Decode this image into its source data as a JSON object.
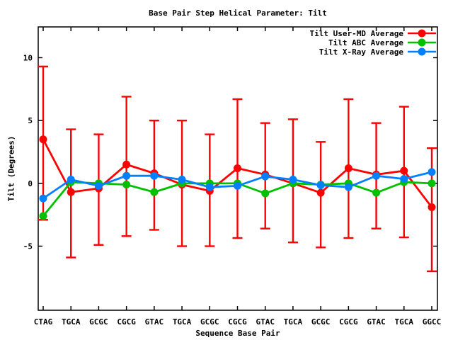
{
  "chart_data": {
    "type": "line",
    "title": "Base Pair Step Helical Parameter: Tilt",
    "xlabel": "Sequence Base Pair",
    "ylabel": "Tilt (Degrees)",
    "categories": [
      "CTAG",
      "TGCA",
      "GCGC",
      "CGCG",
      "GTAC",
      "TGCA",
      "GCGC",
      "CGCG",
      "GTAC",
      "TGCA",
      "GCGC",
      "CGCG",
      "GTAC",
      "TGCA",
      "GGCC"
    ],
    "series": [
      {
        "name": "Tilt User-MD Average",
        "color": "#ff0000",
        "marker": "circle",
        "values": [
          3.5,
          -0.7,
          -0.4,
          1.5,
          0.8,
          -0.1,
          -0.6,
          1.2,
          0.7,
          0.0,
          -0.75,
          1.2,
          0.7,
          1.0,
          -1.9
        ],
        "error_high": [
          9.3,
          4.3,
          3.9,
          6.9,
          5.0,
          5.0,
          3.9,
          6.7,
          4.8,
          5.1,
          3.3,
          6.7,
          4.8,
          6.1,
          2.8
        ],
        "error_low": [
          -2.9,
          -5.9,
          -4.9,
          -4.2,
          -3.7,
          -5.0,
          -5.0,
          -4.35,
          -3.6,
          -4.7,
          -5.1,
          -4.35,
          -3.6,
          -4.3,
          -7.0
        ]
      },
      {
        "name": "Tilt ABC Average",
        "color": "#00c000",
        "marker": "circle",
        "values": [
          -2.6,
          0.1,
          0.0,
          -0.1,
          -0.7,
          0.0,
          0.0,
          0.0,
          -0.8,
          0.0,
          -0.1,
          0.0,
          -0.75,
          0.1,
          0.0
        ]
      },
      {
        "name": "Tilt X-Ray Average",
        "color": "#0080ff",
        "marker": "circle",
        "values": [
          -1.2,
          0.3,
          -0.2,
          0.6,
          0.6,
          0.3,
          -0.3,
          -0.2,
          0.55,
          0.3,
          -0.15,
          -0.3,
          0.6,
          0.35,
          0.9
        ]
      }
    ],
    "yticks": [
      -5,
      0,
      5,
      10
    ],
    "ylim": [
      -10.1,
      12.45
    ],
    "grid": false,
    "legend_position": "top-right-inside",
    "background": "#ffffff",
    "axis_color": "#000000"
  }
}
